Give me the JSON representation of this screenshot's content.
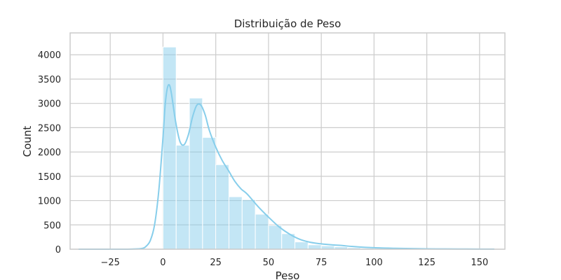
{
  "chart_data": {
    "type": "bar",
    "title": "Distribuição de Peso",
    "xlabel": "Peso",
    "ylabel": "Count",
    "xlim": [
      -44,
      162
    ],
    "ylim": [
      0,
      4450
    ],
    "grid": true,
    "x_ticks": [
      -25,
      0,
      25,
      50,
      75,
      100,
      125,
      150
    ],
    "x_tick_labels": [
      "−25",
      "0",
      "25",
      "50",
      "75",
      "100",
      "125",
      "150"
    ],
    "y_ticks": [
      0,
      500,
      1000,
      1500,
      2000,
      2500,
      3000,
      3500,
      4000
    ],
    "y_tick_labels": [
      "0",
      "500",
      "1000",
      "1500",
      "2000",
      "2500",
      "3000",
      "3500",
      "4000"
    ],
    "bar_color": "#87ceeb",
    "bar_opacity": 0.5,
    "line_color": "#87ceeb",
    "bin_width": 6.25,
    "bins": [
      {
        "x0": 0,
        "x1": 6.25,
        "count": 4160
      },
      {
        "x0": 6.25,
        "x1": 12.5,
        "count": 2140
      },
      {
        "x0": 12.5,
        "x1": 18.75,
        "count": 3110
      },
      {
        "x0": 18.75,
        "x1": 25,
        "count": 2300
      },
      {
        "x0": 25,
        "x1": 31.25,
        "count": 1740
      },
      {
        "x0": 31.25,
        "x1": 37.5,
        "count": 1080
      },
      {
        "x0": 37.5,
        "x1": 43.75,
        "count": 1020
      },
      {
        "x0": 43.75,
        "x1": 50,
        "count": 720
      },
      {
        "x0": 50,
        "x1": 56.25,
        "count": 490
      },
      {
        "x0": 56.25,
        "x1": 62.5,
        "count": 320
      },
      {
        "x0": 62.5,
        "x1": 68.75,
        "count": 150
      },
      {
        "x0": 68.75,
        "x1": 75,
        "count": 90
      },
      {
        "x0": 75,
        "x1": 81.25,
        "count": 70
      },
      {
        "x0": 81.25,
        "x1": 87.5,
        "count": 50
      },
      {
        "x0": 87.5,
        "x1": 93.75,
        "count": 30
      },
      {
        "x0": 93.75,
        "x1": 100,
        "count": 20
      },
      {
        "x0": 100,
        "x1": 106.25,
        "count": 15
      },
      {
        "x0": 106.25,
        "x1": 112.5,
        "count": 10
      },
      {
        "x0": 112.5,
        "x1": 118.75,
        "count": 8
      },
      {
        "x0": 118.75,
        "x1": 125,
        "count": 6
      },
      {
        "x0": 125,
        "x1": 131.25,
        "count": 5
      },
      {
        "x0": 131.25,
        "x1": 137.5,
        "count": 3
      },
      {
        "x0": 137.5,
        "x1": 143.75,
        "count": 2
      },
      {
        "x0": 143.75,
        "x1": 150,
        "count": 2
      },
      {
        "x0": 150,
        "x1": 156.25,
        "count": 1
      }
    ],
    "kde": {
      "x": [
        -40,
        -30,
        -20,
        -15,
        -10,
        -8,
        -6,
        -4,
        -2,
        0,
        1,
        2,
        3,
        4,
        6,
        8,
        10,
        12,
        14,
        16,
        18,
        20,
        22,
        25,
        28,
        31,
        34,
        37,
        40,
        45,
        50,
        55,
        60,
        65,
        70,
        75,
        80,
        85,
        90,
        100,
        110,
        120,
        130,
        140,
        150,
        157
      ],
      "y": [
        0,
        0,
        0,
        2,
        15,
        60,
        180,
        500,
        1200,
        2300,
        2950,
        3300,
        3380,
        3200,
        2620,
        2220,
        2150,
        2350,
        2720,
        2960,
        2960,
        2760,
        2440,
        2100,
        1830,
        1620,
        1400,
        1240,
        1130,
        880,
        660,
        460,
        310,
        200,
        140,
        110,
        90,
        75,
        55,
        30,
        18,
        10,
        6,
        4,
        2,
        1
      ]
    }
  }
}
